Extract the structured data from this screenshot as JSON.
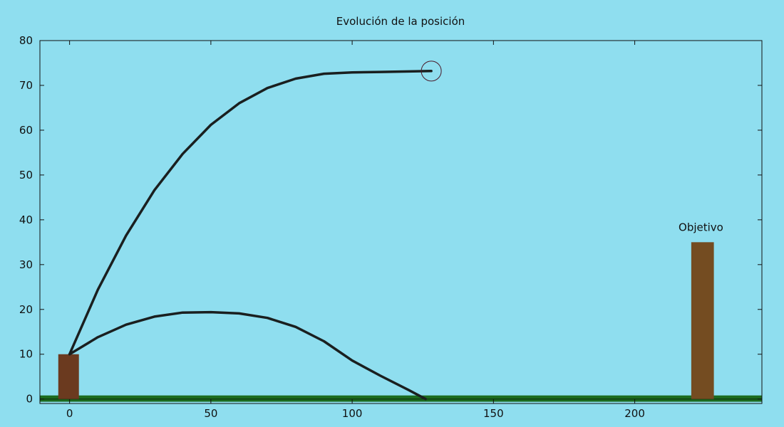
{
  "chart_data": {
    "type": "line",
    "title": "Evolución de la posición",
    "xlabel": "",
    "ylabel": "",
    "xlim": [
      -10.5,
      245
    ],
    "ylim": [
      -1,
      80
    ],
    "xticks": [
      0,
      50,
      100,
      150,
      200
    ],
    "yticks": [
      0,
      10,
      20,
      30,
      40,
      50,
      60,
      70,
      80
    ],
    "grid": false,
    "series": [
      {
        "x": [
          0,
          10,
          20,
          30,
          40,
          50,
          60,
          70,
          80,
          90,
          100,
          110,
          120,
          128
        ],
        "y": [
          10,
          24.4,
          36.5,
          46.6,
          54.7,
          61.2,
          66.0,
          69.4,
          71.5,
          72.6,
          72.9,
          73.0,
          73.1,
          73.2
        ]
      },
      {
        "x": [
          0,
          10,
          20,
          30,
          40,
          50,
          60,
          70,
          80,
          90,
          100,
          110,
          120,
          126
        ],
        "y": [
          10,
          13.8,
          16.6,
          18.4,
          19.3,
          19.4,
          19.1,
          18.1,
          16.1,
          12.9,
          8.6,
          5.2,
          2.0,
          0
        ]
      }
    ],
    "marker": {
      "x": 128,
      "y": 73.2
    },
    "blocks": [
      {
        "x0": -4,
        "x1": 3.3,
        "y0": 0,
        "y1": 10,
        "color": "#6b3a1f"
      },
      {
        "x0": 220,
        "x1": 228,
        "y0": 0,
        "y1": 35,
        "color": "#744c21"
      }
    ],
    "ground": {
      "y0": -0.6,
      "y1": 0.8,
      "color": "#1b6b1e"
    },
    "annotations": [
      {
        "text": "Objetivo",
        "x": 215.5,
        "y": 37.5
      }
    ],
    "colors": {
      "background": "#8fdeef",
      "line": "#1a1f1f",
      "marker": "#4a1a2a",
      "axis": "#111111"
    }
  }
}
